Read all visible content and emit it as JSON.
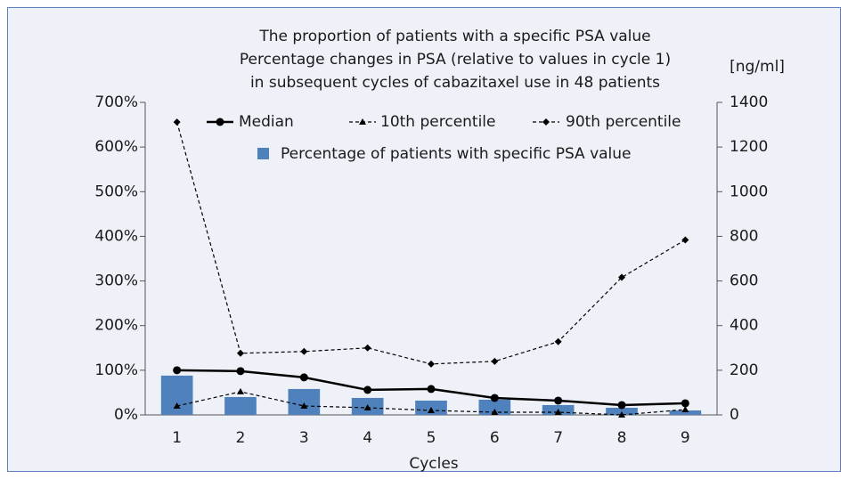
{
  "chart_data": {
    "type": "bar-line",
    "title": [
      "The proportion of patients with a specific PSA value",
      "Percentage changes in PSA (relative to values in cycle 1)",
      "in subsequent cycles of cabazitaxel use in 48 patients"
    ],
    "x_label": "Cycles",
    "y2_label": "[ng/ml]",
    "categories": [
      "1",
      "2",
      "3",
      "4",
      "5",
      "6",
      "7",
      "8",
      "9"
    ],
    "series": [
      {
        "name": "Median",
        "kind": "line",
        "marker": "circle",
        "dash": false,
        "color": "#000000",
        "values": [
          100,
          98,
          84,
          56,
          58,
          38,
          32,
          22,
          26
        ]
      },
      {
        "name": "10th percentile",
        "kind": "line",
        "marker": "triangle",
        "dash": true,
        "color": "#000000",
        "values": [
          20,
          52,
          20,
          16,
          10,
          6,
          6,
          0,
          12
        ]
      },
      {
        "name": "90th percentile",
        "kind": "line",
        "marker": "diamond",
        "dash": true,
        "color": "#000000",
        "values": [
          656,
          138,
          142,
          150,
          114,
          120,
          164,
          308,
          392
        ]
      },
      {
        "name": "Percentage of patients with specific PSA value",
        "kind": "bar",
        "color": "#4f81bd",
        "values": [
          88,
          40,
          58,
          38,
          32,
          34,
          22,
          16,
          10
        ]
      }
    ],
    "ylim": [
      0,
      700
    ],
    "yticks": [
      {
        "value": 0,
        "label": "0%"
      },
      {
        "value": 100,
        "label": "100%"
      },
      {
        "value": 200,
        "label": "200%"
      },
      {
        "value": 300,
        "label": "300%"
      },
      {
        "value": 400,
        "label": "400%"
      },
      {
        "value": 500,
        "label": "500%"
      },
      {
        "value": 600,
        "label": "600%"
      },
      {
        "value": 700,
        "label": "700%"
      }
    ],
    "y2lim": [
      0,
      1400
    ],
    "y2ticks": [
      0,
      200,
      400,
      600,
      800,
      1000,
      1200,
      1400
    ],
    "grid": false
  }
}
